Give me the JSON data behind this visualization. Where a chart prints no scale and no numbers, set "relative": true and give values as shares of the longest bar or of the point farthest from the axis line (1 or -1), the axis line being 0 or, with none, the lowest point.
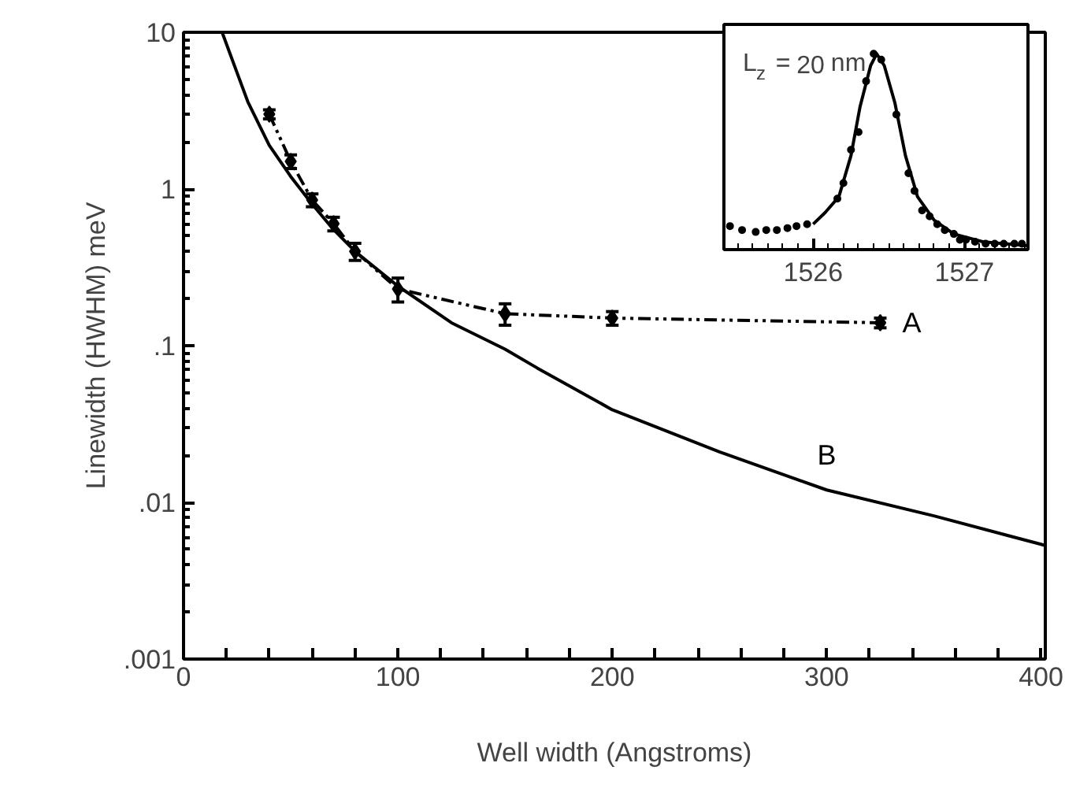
{
  "chart_data": [
    {
      "type": "line",
      "xlabel": "Well width (Angstroms)",
      "ylabel": "Linewidth (HWHM) meV",
      "log": "y",
      "xlim": [
        0,
        402
      ],
      "xticks": [
        0,
        {
          "value": 20,
          "label": null
        },
        {
          "value": 40,
          "label": null
        },
        {
          "value": 60,
          "label": null
        },
        {
          "value": 80,
          "label": null
        },
        100,
        {
          "value": 120,
          "label": null
        },
        {
          "value": 140,
          "label": null
        },
        {
          "value": 160,
          "label": null
        },
        {
          "value": 180,
          "label": null
        },
        200,
        {
          "value": 220,
          "label": null
        },
        {
          "value": 240,
          "label": null
        },
        {
          "value": 260,
          "label": null
        },
        {
          "value": 280,
          "label": null
        },
        300,
        {
          "value": 320,
          "label": null
        },
        {
          "value": 340,
          "label": null
        },
        {
          "value": 360,
          "label": null
        },
        {
          "value": 380,
          "label": null
        },
        400
      ],
      "ylim": [
        0.001,
        10
      ],
      "yticks": [
        {
          "value": 0.001,
          "label": ".001"
        },
        {
          "value": 0.01,
          "label": ".01"
        },
        {
          "value": 0.1,
          "label": ".1"
        },
        1,
        10
      ],
      "series": [
        {
          "name": "A",
          "color": "#000000",
          "line_style": "dashed",
          "marker": "diamond",
          "x": [
            40,
            50,
            60,
            70,
            80,
            100,
            150,
            200,
            325
          ],
          "values": [
            3.0,
            1.5,
            0.85,
            0.6,
            0.4,
            0.23,
            0.16,
            0.15,
            0.14
          ],
          "errors": [
            0.2,
            0.15,
            0.08,
            0.06,
            0.05,
            0.04,
            0.025,
            0.015,
            0.01
          ]
        },
        {
          "name": "B",
          "color": "#000000",
          "line_style": "solid",
          "marker": "none",
          "x": [
            18,
            25,
            30,
            40,
            50,
            60,
            70,
            80,
            100,
            125,
            150,
            165,
            200,
            250,
            300,
            350,
            400,
            402
          ],
          "values": [
            10,
            5.5,
            3.6,
            1.9,
            1.2,
            0.8,
            0.55,
            0.4,
            0.24,
            0.14,
            0.095,
            0.072,
            0.039,
            0.021,
            0.012,
            0.0082,
            0.0054,
            0.0053
          ]
        }
      ],
      "grid": false
    },
    {
      "type": "line",
      "relative": true,
      "xlim": [
        1525.41,
        1527.42
      ],
      "xticks": [
        1526,
        1527
      ],
      "tick_labels": "x",
      "series": [
        {
          "type": "scatter",
          "color": "#000000",
          "marker": "circle",
          "x": [
            1525.45,
            1525.53,
            1525.62,
            1525.69,
            1525.76,
            1525.83,
            1525.89,
            1525.96,
            1526.16,
            1526.2,
            1526.25,
            1526.3,
            1526.35,
            1526.4,
            1526.45,
            1526.55,
            1526.63,
            1526.67,
            1526.72,
            1526.77,
            1526.82,
            1526.87,
            1526.93,
            1526.97,
            1527.01,
            1527.07,
            1527.14,
            1527.2,
            1527.26,
            1527.33,
            1527.38
          ],
          "values": [
            0.12,
            0.1,
            0.09,
            0.1,
            0.1,
            0.11,
            0.12,
            0.13,
            0.26,
            0.34,
            0.51,
            0.6,
            0.86,
            1.0,
            0.97,
            0.69,
            0.39,
            0.3,
            0.2,
            0.17,
            0.13,
            0.1,
            0.08,
            0.05,
            0.05,
            0.04,
            0.03,
            0.03,
            0.03,
            0.03,
            0.03
          ]
        },
        {
          "color": "#000000",
          "line_style": "solid",
          "marker": "none",
          "x": [
            1526.0,
            1526.08,
            1526.17,
            1526.25,
            1526.31,
            1526.38,
            1526.42,
            1526.47,
            1526.54,
            1526.61,
            1526.69,
            1526.8,
            1526.93,
            1527.12,
            1527.42
          ],
          "values": [
            0.13,
            0.19,
            0.27,
            0.48,
            0.73,
            0.94,
            1.0,
            0.94,
            0.75,
            0.48,
            0.27,
            0.15,
            0.08,
            0.04,
            0.02
          ]
        }
      ],
      "annotations": [
        "L$_{z}$ = 20 nm"
      ],
      "grid": false
    }
  ]
}
